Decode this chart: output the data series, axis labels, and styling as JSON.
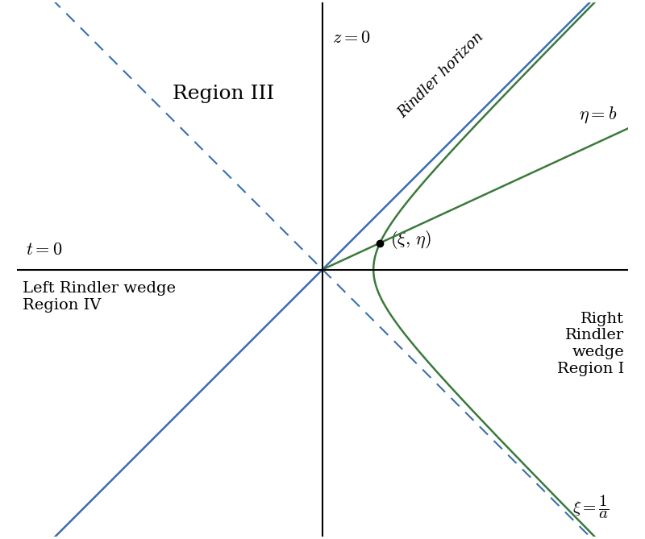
{
  "xlim": [
    -4,
    4
  ],
  "ylim": [
    -3.5,
    3.5
  ],
  "figsize": [
    8.0,
    6.69
  ],
  "dpi": 100,
  "bg_color": "#ffffff",
  "axis_color": "#000000",
  "blue_solid_color": "#3a6eac",
  "blue_dashed_color": "#3a6eac",
  "green_color": "#3a7a3a",
  "rindler_a": 1.5,
  "eta_b": 0.5
}
